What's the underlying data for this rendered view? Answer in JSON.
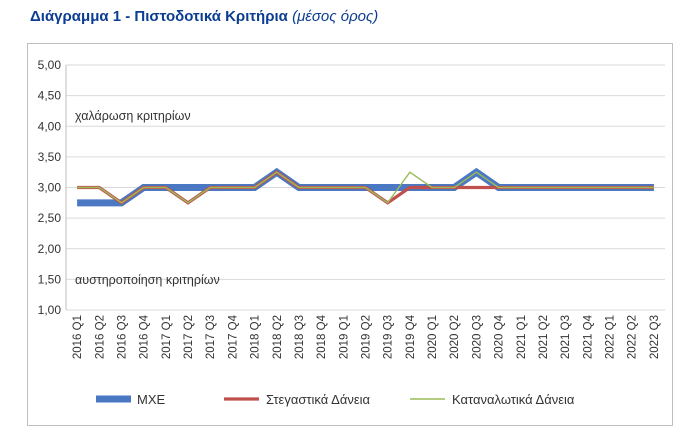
{
  "header": {
    "title": "Διάγραμμα 1 - Πιστοδοτικά Κριτήρια",
    "subtitle": "(μέσος όρος)"
  },
  "chart_data": {
    "type": "line",
    "title": "Διάγραμμα 1 - Πιστοδοτικά Κριτήρια (μέσος όρος)",
    "xlabel": "",
    "ylabel": "",
    "ylim": [
      1.0,
      5.0
    ],
    "yticks": [
      "5,00",
      "4,50",
      "4,00",
      "3,50",
      "3,00",
      "2,50",
      "2,00",
      "1,50",
      "1,00"
    ],
    "categories": [
      "2016 Q1",
      "2016 Q2",
      "2016 Q3",
      "2016 Q4",
      "2017 Q1",
      "2017 Q2",
      "2017 Q3",
      "2017 Q4",
      "2018 Q1",
      "2018 Q2",
      "2018 Q3",
      "2018 Q4",
      "2019 Q1",
      "2019 Q2",
      "2019 Q3",
      "2019 Q4",
      "2020 Q1",
      "2020 Q2",
      "2020 Q3",
      "2020 Q4",
      "2021 Q1",
      "2021 Q2",
      "2021 Q3",
      "2021 Q4",
      "2022 Q1",
      "2022 Q2",
      "2022 Q3"
    ],
    "grid": true,
    "legend_position": "bottom",
    "annotations": [
      "χαλάρωση κριτηρίων",
      "αυστηροποίηση κριτηρίων"
    ],
    "series": [
      {
        "name": "ΜΧΕ",
        "color": "#4a78c2",
        "values": [
          2.75,
          2.75,
          2.75,
          3.0,
          3.0,
          3.0,
          3.0,
          3.0,
          3.0,
          3.25,
          3.0,
          3.0,
          3.0,
          3.0,
          3.0,
          3.0,
          3.0,
          3.0,
          3.25,
          3.0,
          3.0,
          3.0,
          3.0,
          3.0,
          3.0,
          3.0,
          3.0
        ]
      },
      {
        "name": "Στεγαστικά Δάνεια",
        "color": "#c0504d",
        "values": [
          3.0,
          3.0,
          2.75,
          3.0,
          3.0,
          2.75,
          3.0,
          3.0,
          3.0,
          3.25,
          3.0,
          3.0,
          3.0,
          3.0,
          2.75,
          3.0,
          3.0,
          3.0,
          3.0,
          3.0,
          3.0,
          3.0,
          3.0,
          3.0,
          3.0,
          3.0,
          3.0
        ]
      },
      {
        "name": "Καταναλωτικά Δάνεια",
        "color": "#9bbb59",
        "values": [
          3.0,
          3.0,
          2.75,
          3.0,
          3.0,
          2.75,
          3.0,
          3.0,
          3.0,
          3.25,
          3.0,
          3.0,
          3.0,
          3.0,
          2.75,
          3.25,
          3.0,
          3.0,
          3.25,
          3.0,
          3.0,
          3.0,
          3.0,
          3.0,
          3.0,
          3.0,
          3.0
        ]
      }
    ]
  }
}
